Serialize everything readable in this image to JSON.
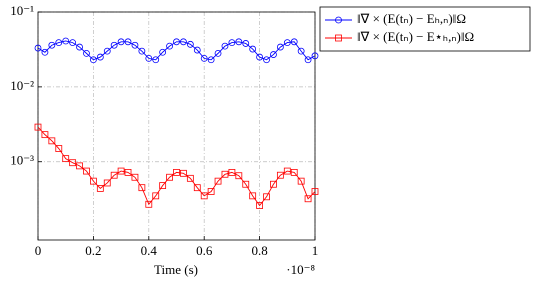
{
  "chart_data": {
    "type": "line",
    "xlabel": "Time (s)",
    "x_multiplier": "·10⁻⁸",
    "log_y": true,
    "grid": true,
    "legend": "outside-right-top",
    "xlim": [
      0,
      1e-08
    ],
    "ylim": [
      9e-05,
      0.1
    ],
    "xticks": [
      {
        "value": 0,
        "label": "0"
      },
      {
        "value": 2e-09,
        "label": "0.2"
      },
      {
        "value": 4e-09,
        "label": "0.4"
      },
      {
        "value": 6e-09,
        "label": "0.6"
      },
      {
        "value": 8e-09,
        "label": "0.8"
      },
      {
        "value": 1e-08,
        "label": "1"
      }
    ],
    "yticks": [
      {
        "value": 0.001,
        "label": "10⁻³"
      },
      {
        "value": 0.01,
        "label": "10⁻²"
      },
      {
        "value": 0.1,
        "label": "10⁻¹"
      }
    ],
    "x": [
      0,
      2.5e-10,
      5e-10,
      7.5e-10,
      1e-09,
      1.25e-09,
      1.5e-09,
      1.75e-09,
      2e-09,
      2.25e-09,
      2.5e-09,
      2.75e-09,
      3e-09,
      3.25e-09,
      3.5e-09,
      3.75e-09,
      4e-09,
      4.25e-09,
      4.5e-09,
      4.75e-09,
      5e-09,
      5.25e-09,
      5.5e-09,
      5.75e-09,
      6e-09,
      6.25e-09,
      6.5e-09,
      6.75e-09,
      7e-09,
      7.25e-09,
      7.5e-09,
      7.75e-09,
      8e-09,
      8.25e-09,
      8.5e-09,
      8.75e-09,
      9e-09,
      9.25e-09,
      9.5e-09,
      9.75e-09,
      1e-08
    ],
    "series": [
      {
        "name": "‖∇ × (E(tₙ) − Eₕ,ₙ)‖Ω",
        "color": "#0000ff",
        "marker": "circle",
        "values": [
          0.033,
          0.029,
          0.036,
          0.039,
          0.041,
          0.039,
          0.034,
          0.028,
          0.023,
          0.025,
          0.03,
          0.036,
          0.04,
          0.04,
          0.036,
          0.03,
          0.024,
          0.023,
          0.029,
          0.035,
          0.04,
          0.04,
          0.037,
          0.031,
          0.024,
          0.023,
          0.028,
          0.035,
          0.039,
          0.04,
          0.038,
          0.032,
          0.025,
          0.023,
          0.027,
          0.034,
          0.039,
          0.04,
          0.03,
          0.023,
          0.026
        ]
      },
      {
        "name": "‖∇ × (E(tₙ) − E⋆ₕ,ₙ)‖Ω",
        "color": "#ff0000",
        "marker": "square",
        "values": [
          0.0029,
          0.0023,
          0.0019,
          0.0015,
          0.0011,
          0.00097,
          0.00088,
          0.00075,
          0.00055,
          0.00044,
          0.00052,
          0.00066,
          0.00075,
          0.00072,
          0.00062,
          0.00045,
          0.00027,
          0.00035,
          0.00048,
          0.00062,
          0.00072,
          0.0007,
          0.0006,
          0.00045,
          0.00035,
          0.0004,
          0.00055,
          0.00068,
          0.00072,
          0.00065,
          0.0005,
          0.00035,
          0.00026,
          0.00034,
          0.0005,
          0.00066,
          0.00075,
          0.00072,
          0.00055,
          0.00032,
          0.0004
        ]
      }
    ]
  }
}
